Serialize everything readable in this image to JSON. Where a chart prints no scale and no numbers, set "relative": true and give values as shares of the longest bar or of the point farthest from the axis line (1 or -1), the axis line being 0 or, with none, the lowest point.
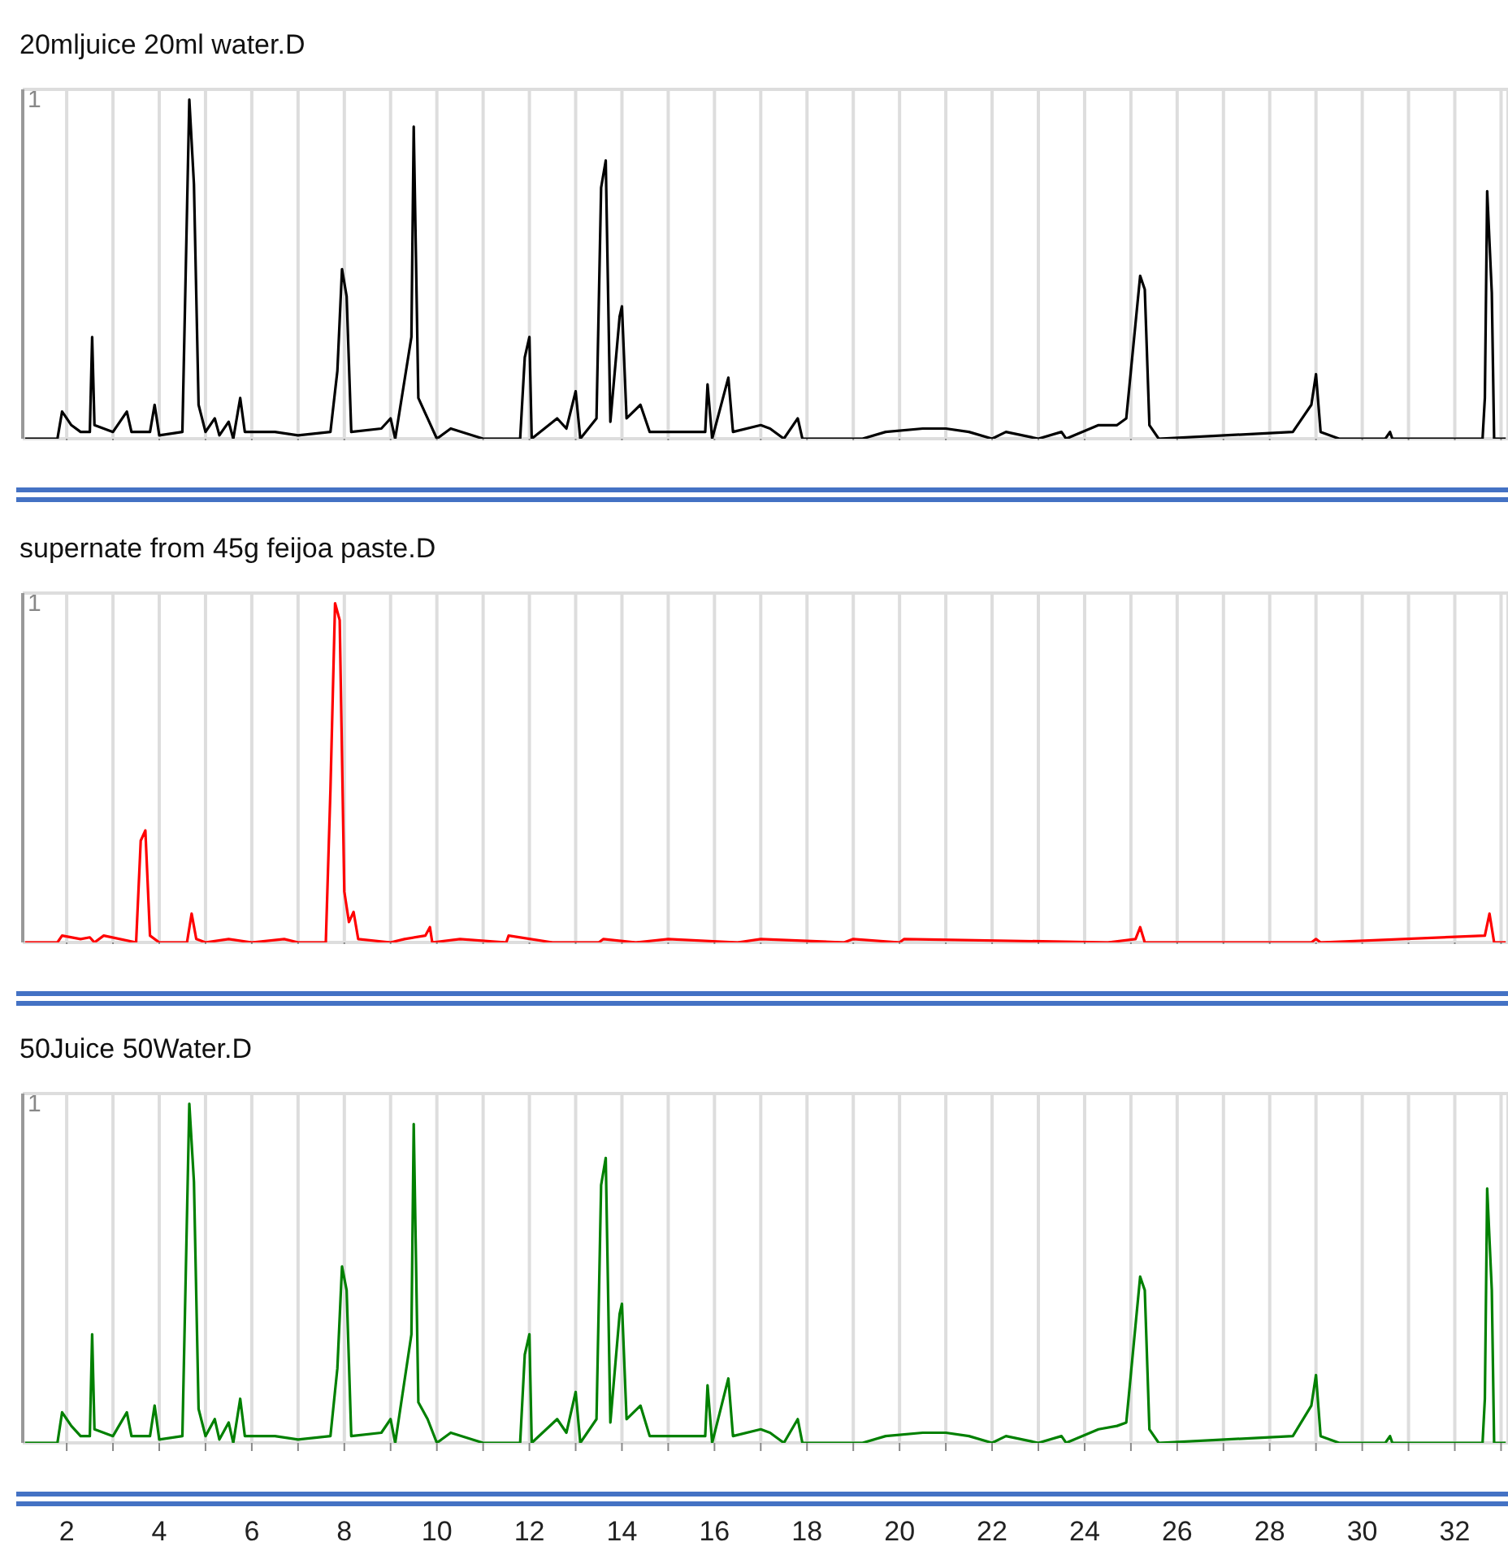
{
  "chart_data": [
    {
      "type": "line",
      "title": "20mljuice 20ml water.D",
      "color": "#000000",
      "relative": true,
      "grid": true,
      "tick_labels": false,
      "annotations": [
        "1"
      ],
      "xlim": [
        1.05,
        33.15
      ],
      "xticks": [
        2,
        {
          "value": 3,
          "label": null
        },
        4,
        {
          "value": 5,
          "label": null
        },
        6,
        {
          "value": 7,
          "label": null
        },
        8,
        {
          "value": 9,
          "label": null
        },
        10,
        {
          "value": 11,
          "label": null
        },
        12,
        {
          "value": 13,
          "label": null
        },
        14,
        {
          "value": 15,
          "label": null
        },
        16,
        {
          "value": 17,
          "label": null
        },
        18,
        {
          "value": 19,
          "label": null
        },
        20,
        {
          "value": 21,
          "label": null
        },
        22,
        {
          "value": 23,
          "label": null
        },
        24,
        {
          "value": 25,
          "label": null
        },
        26,
        {
          "value": 27,
          "label": null
        },
        28,
        {
          "value": 29,
          "label": null
        },
        30,
        {
          "value": 31,
          "label": null
        },
        32,
        {
          "value": 33,
          "label": null
        }
      ],
      "x": [
        1.1,
        1.8,
        1.9,
        2.0,
        2.1,
        2.3,
        2.5,
        2.55,
        2.6,
        3.0,
        3.3,
        3.4,
        3.8,
        3.9,
        4.0,
        4.5,
        4.65,
        4.75,
        4.85,
        5.0,
        5.2,
        5.3,
        5.5,
        5.6,
        5.75,
        5.85,
        6.5,
        7.0,
        7.7,
        7.85,
        7.95,
        8.05,
        8.15,
        8.8,
        9.0,
        9.1,
        9.45,
        9.5,
        9.6,
        9.8,
        10.0,
        10.3,
        11.0,
        11.8,
        11.9,
        12.0,
        12.05,
        12.6,
        12.8,
        13.0,
        13.1,
        13.45,
        13.55,
        13.65,
        13.75,
        13.95,
        14.0,
        14.1,
        14.4,
        14.6,
        15.0,
        15.8,
        15.85,
        15.95,
        16.3,
        16.4,
        17.0,
        17.2,
        17.5,
        17.8,
        17.9,
        18.5,
        19.2,
        19.7,
        20.5,
        21.0,
        21.5,
        22.0,
        22.3,
        23.0,
        23.5,
        23.6,
        24.3,
        24.7,
        24.9,
        25.2,
        25.3,
        25.4,
        25.6,
        28.5,
        28.9,
        29.0,
        29.1,
        29.5,
        30.5,
        30.6,
        30.65,
        32.6,
        32.65,
        32.7,
        32.8,
        32.85,
        33.1
      ],
      "values": [
        0,
        0,
        0.08,
        0.06,
        0.04,
        0.02,
        0.02,
        0.3,
        0.04,
        0.02,
        0.08,
        0.02,
        0.02,
        0.1,
        0.01,
        0.02,
        1,
        0.75,
        0.1,
        0.02,
        0.06,
        0.01,
        0.05,
        0,
        0.12,
        0.02,
        0.02,
        0.01,
        0.02,
        0.2,
        0.5,
        0.42,
        0.02,
        0.03,
        0.06,
        0,
        0.3,
        0.92,
        0.12,
        0.06,
        0,
        0.03,
        0,
        0,
        0.24,
        0.3,
        0,
        0.06,
        0.03,
        0.14,
        0,
        0.06,
        0.74,
        0.82,
        0.05,
        0.36,
        0.39,
        0.06,
        0.1,
        0.02,
        0.02,
        0.02,
        0.16,
        0,
        0.18,
        0.02,
        0.04,
        0.03,
        0,
        0.06,
        0,
        0,
        0,
        0.02,
        0.03,
        0.03,
        0.02,
        0,
        0.02,
        0,
        0.02,
        0,
        0.04,
        0.04,
        0.06,
        0.48,
        0.44,
        0.04,
        0,
        0.02,
        0.1,
        0.19,
        0.02,
        0,
        0,
        0.02,
        0,
        0,
        0.12,
        0.73,
        0.43,
        0,
        0
      ]
    },
    {
      "type": "line",
      "title": "supernate from 45g feijoa paste.D",
      "color": "#ff0000",
      "relative": true,
      "grid": true,
      "tick_labels": false,
      "annotations": [
        "1"
      ],
      "xlim": [
        1.05,
        33.15
      ],
      "xticks": [
        2,
        {
          "value": 3,
          "label": null
        },
        4,
        {
          "value": 5,
          "label": null
        },
        6,
        {
          "value": 7,
          "label": null
        },
        8,
        {
          "value": 9,
          "label": null
        },
        10,
        {
          "value": 11,
          "label": null
        },
        12,
        {
          "value": 13,
          "label": null
        },
        14,
        {
          "value": 15,
          "label": null
        },
        16,
        {
          "value": 17,
          "label": null
        },
        18,
        {
          "value": 19,
          "label": null
        },
        20,
        {
          "value": 21,
          "label": null
        },
        22,
        {
          "value": 23,
          "label": null
        },
        24,
        {
          "value": 25,
          "label": null
        },
        26,
        {
          "value": 27,
          "label": null
        },
        28,
        {
          "value": 29,
          "label": null
        },
        30,
        {
          "value": 31,
          "label": null
        },
        32,
        {
          "value": 33,
          "label": null
        }
      ],
      "x": [
        1.1,
        1.8,
        1.9,
        2.3,
        2.5,
        2.6,
        2.8,
        3.5,
        3.6,
        3.7,
        3.8,
        4.0,
        4.6,
        4.7,
        4.8,
        5.0,
        5.5,
        6.0,
        6.7,
        7.0,
        7.6,
        7.7,
        7.8,
        7.9,
        8.0,
        8.1,
        8.2,
        8.3,
        9.0,
        9.3,
        9.75,
        9.85,
        9.9,
        10.5,
        11.5,
        11.55,
        12.5,
        13.5,
        13.6,
        14.3,
        15.0,
        16.5,
        17.0,
        18.8,
        19.0,
        20.0,
        20.1,
        24.5,
        25.1,
        25.2,
        25.3,
        28.9,
        29.0,
        29.1,
        32.65,
        32.75,
        32.85,
        33.1
      ],
      "values": [
        0,
        0,
        0.02,
        0.01,
        0.015,
        0,
        0.02,
        0,
        0.3,
        0.33,
        0.02,
        0,
        0,
        0.085,
        0.01,
        0,
        0.01,
        0,
        0.01,
        0,
        0,
        0.45,
        1,
        0.95,
        0.15,
        0.06,
        0.09,
        0.01,
        0,
        0.01,
        0.02,
        0.045,
        0,
        0.01,
        0,
        0.02,
        0,
        0,
        0.01,
        0,
        0.01,
        0,
        0.01,
        0,
        0.01,
        0,
        0.01,
        0,
        0.01,
        0.045,
        0,
        0,
        0.01,
        0,
        0.02,
        0.085,
        0,
        0
      ]
    },
    {
      "type": "line",
      "title": "50Juice 50Water.D",
      "color": "#008000",
      "relative": true,
      "grid": true,
      "tick_labels": "x",
      "annotations": [
        "1"
      ],
      "xlim": [
        1.05,
        33.15
      ],
      "xticks": [
        2,
        {
          "value": 3,
          "label": null
        },
        4,
        {
          "value": 5,
          "label": null
        },
        6,
        {
          "value": 7,
          "label": null
        },
        8,
        {
          "value": 9,
          "label": null
        },
        10,
        {
          "value": 11,
          "label": null
        },
        12,
        {
          "value": 13,
          "label": null
        },
        14,
        {
          "value": 15,
          "label": null
        },
        16,
        {
          "value": 17,
          "label": null
        },
        18,
        {
          "value": 19,
          "label": null
        },
        20,
        {
          "value": 21,
          "label": null
        },
        22,
        {
          "value": 23,
          "label": null
        },
        24,
        {
          "value": 25,
          "label": null
        },
        26,
        {
          "value": 27,
          "label": null
        },
        28,
        {
          "value": 29,
          "label": null
        },
        30,
        {
          "value": 31,
          "label": null
        },
        32,
        {
          "value": 33,
          "label": null
        }
      ],
      "x": [
        1.1,
        1.8,
        1.9,
        2.0,
        2.1,
        2.3,
        2.5,
        2.55,
        2.6,
        3.0,
        3.3,
        3.4,
        3.8,
        3.9,
        4.0,
        4.5,
        4.65,
        4.75,
        4.85,
        5.0,
        5.2,
        5.3,
        5.5,
        5.6,
        5.75,
        5.85,
        6.5,
        7.0,
        7.7,
        7.85,
        7.95,
        8.05,
        8.15,
        8.8,
        9.0,
        9.1,
        9.45,
        9.5,
        9.6,
        9.8,
        10.0,
        10.3,
        11.0,
        11.8,
        11.9,
        12.0,
        12.05,
        12.6,
        12.8,
        13.0,
        13.1,
        13.45,
        13.55,
        13.65,
        13.75,
        13.95,
        14.0,
        14.1,
        14.4,
        14.6,
        15.0,
        15.8,
        15.85,
        15.95,
        16.3,
        16.4,
        17.0,
        17.2,
        17.5,
        17.8,
        17.9,
        18.5,
        19.2,
        19.7,
        20.5,
        21.0,
        21.5,
        22.0,
        22.3,
        23.0,
        23.5,
        23.6,
        24.3,
        24.7,
        24.9,
        25.2,
        25.3,
        25.4,
        25.6,
        28.5,
        28.9,
        29.0,
        29.1,
        29.5,
        30.5,
        30.6,
        30.65,
        32.6,
        32.65,
        32.7,
        32.8,
        32.85,
        33.1
      ],
      "values": [
        0,
        0,
        0.09,
        0.07,
        0.05,
        0.02,
        0.02,
        0.32,
        0.04,
        0.02,
        0.09,
        0.02,
        0.02,
        0.11,
        0.01,
        0.02,
        1,
        0.77,
        0.1,
        0.02,
        0.07,
        0.01,
        0.06,
        0,
        0.13,
        0.02,
        0.02,
        0.01,
        0.02,
        0.22,
        0.52,
        0.45,
        0.02,
        0.03,
        0.07,
        0,
        0.32,
        0.94,
        0.12,
        0.07,
        0,
        0.03,
        0,
        0,
        0.26,
        0.32,
        0,
        0.07,
        0.03,
        0.15,
        0,
        0.07,
        0.76,
        0.84,
        0.06,
        0.38,
        0.41,
        0.07,
        0.11,
        0.02,
        0.02,
        0.02,
        0.17,
        0,
        0.19,
        0.02,
        0.04,
        0.03,
        0,
        0.07,
        0,
        0,
        0,
        0.02,
        0.03,
        0.03,
        0.02,
        0,
        0.02,
        0,
        0.02,
        0,
        0.04,
        0.05,
        0.06,
        0.49,
        0.45,
        0.04,
        0,
        0.02,
        0.11,
        0.2,
        0.02,
        0,
        0,
        0.02,
        0,
        0,
        0.13,
        0.75,
        0.45,
        0,
        0
      ]
    }
  ]
}
